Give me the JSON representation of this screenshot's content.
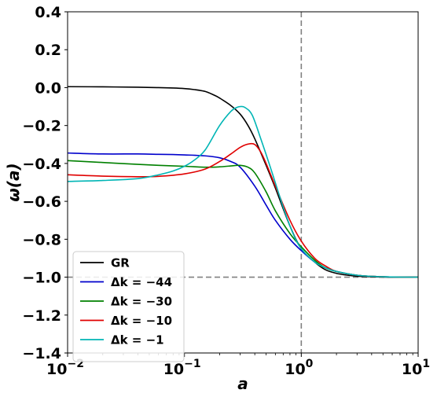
{
  "chart_data": {
    "type": "line",
    "xlabel": "a",
    "ylabel": "ω(a)",
    "xscale": "log",
    "xlim": [
      0.01,
      10
    ],
    "ylim": [
      -1.4,
      0.4
    ],
    "grid": false,
    "legend_position": "lower-left",
    "x_ticks": [
      {
        "value": 0.01,
        "base": "10",
        "exp": "−2"
      },
      {
        "value": 0.1,
        "base": "10",
        "exp": "−1"
      },
      {
        "value": 1,
        "base": "10",
        "exp": "0"
      },
      {
        "value": 10,
        "base": "10",
        "exp": "1"
      }
    ],
    "y_ticks": [
      {
        "value": 0.4,
        "label": "0.4"
      },
      {
        "value": 0.2,
        "label": "0.2"
      },
      {
        "value": 0.0,
        "label": "0.0"
      },
      {
        "value": -0.2,
        "label": "−0.2"
      },
      {
        "value": -0.4,
        "label": "−0.4"
      },
      {
        "value": -0.6,
        "label": "−0.6"
      },
      {
        "value": -0.8,
        "label": "−0.8"
      },
      {
        "value": -1.0,
        "label": "−1.0"
      },
      {
        "value": -1.2,
        "label": "−1.2"
      },
      {
        "value": -1.4,
        "label": "−1.4"
      }
    ],
    "reference_lines": [
      {
        "orientation": "vertical",
        "value": 1,
        "style": "dashed",
        "color": "#808080"
      },
      {
        "orientation": "horizontal",
        "value": -1,
        "style": "dashed",
        "color": "#808080"
      }
    ],
    "series": [
      {
        "name": "GR",
        "color": "#000000",
        "x": [
          0.01,
          0.02,
          0.04,
          0.06,
          0.08,
          0.1,
          0.12,
          0.15,
          0.18,
          0.2,
          0.25,
          0.3,
          0.35,
          0.4,
          0.5,
          0.6,
          0.8,
          1.0,
          1.3,
          1.6,
          2.0,
          2.5,
          3.0,
          4.0,
          6.0,
          10.0
        ],
        "y": [
          0.005,
          0.004,
          0.002,
          0.0,
          -0.002,
          -0.005,
          -0.01,
          -0.02,
          -0.04,
          -0.055,
          -0.095,
          -0.14,
          -0.2,
          -0.27,
          -0.41,
          -0.53,
          -0.73,
          -0.85,
          -0.92,
          -0.96,
          -0.98,
          -0.99,
          -0.995,
          -0.998,
          -1.0,
          -1.0
        ]
      },
      {
        "name": "Δk = −44",
        "color": "#0000cc",
        "x": [
          0.01,
          0.02,
          0.04,
          0.06,
          0.08,
          0.1,
          0.15,
          0.2,
          0.25,
          0.3,
          0.4,
          0.5,
          0.6,
          0.8,
          1.0,
          1.3,
          1.6,
          2.0,
          3.0,
          5.0,
          10.0
        ],
        "y": [
          -0.345,
          -0.35,
          -0.35,
          -0.352,
          -0.353,
          -0.355,
          -0.36,
          -0.37,
          -0.39,
          -0.42,
          -0.52,
          -0.62,
          -0.7,
          -0.8,
          -0.86,
          -0.92,
          -0.95,
          -0.97,
          -0.99,
          -0.998,
          -1.0
        ]
      },
      {
        "name": "Δk = −30",
        "color": "#008000",
        "x": [
          0.01,
          0.02,
          0.04,
          0.06,
          0.1,
          0.15,
          0.2,
          0.25,
          0.3,
          0.35,
          0.4,
          0.5,
          0.6,
          0.8,
          1.0,
          1.3,
          1.6,
          2.0,
          3.0,
          5.0,
          10.0
        ],
        "y": [
          -0.385,
          -0.395,
          -0.405,
          -0.41,
          -0.415,
          -0.42,
          -0.418,
          -0.413,
          -0.41,
          -0.42,
          -0.45,
          -0.55,
          -0.65,
          -0.77,
          -0.84,
          -0.91,
          -0.95,
          -0.97,
          -0.99,
          -0.998,
          -1.0
        ]
      },
      {
        "name": "Δk = −10",
        "color": "#e00000",
        "x": [
          0.01,
          0.02,
          0.04,
          0.06,
          0.1,
          0.15,
          0.2,
          0.25,
          0.3,
          0.35,
          0.4,
          0.45,
          0.5,
          0.6,
          0.8,
          1.0,
          1.3,
          1.6,
          2.0,
          3.0,
          5.0,
          10.0
        ],
        "y": [
          -0.46,
          -0.467,
          -0.47,
          -0.468,
          -0.455,
          -0.43,
          -0.39,
          -0.35,
          -0.315,
          -0.298,
          -0.3,
          -0.34,
          -0.4,
          -0.52,
          -0.7,
          -0.81,
          -0.9,
          -0.94,
          -0.97,
          -0.99,
          -0.998,
          -1.0
        ]
      },
      {
        "name": "Δk = −1",
        "color": "#00b5b5",
        "x": [
          0.01,
          0.02,
          0.04,
          0.06,
          0.08,
          0.1,
          0.12,
          0.15,
          0.2,
          0.25,
          0.28,
          0.3,
          0.33,
          0.38,
          0.45,
          0.55,
          0.7,
          0.85,
          1.0,
          1.3,
          1.6,
          2.0,
          3.0,
          5.0,
          10.0
        ],
        "y": [
          -0.495,
          -0.49,
          -0.48,
          -0.46,
          -0.44,
          -0.415,
          -0.385,
          -0.33,
          -0.2,
          -0.125,
          -0.105,
          -0.1,
          -0.105,
          -0.145,
          -0.27,
          -0.43,
          -0.63,
          -0.77,
          -0.85,
          -0.92,
          -0.95,
          -0.97,
          -0.99,
          -0.998,
          -1.0
        ]
      }
    ]
  }
}
